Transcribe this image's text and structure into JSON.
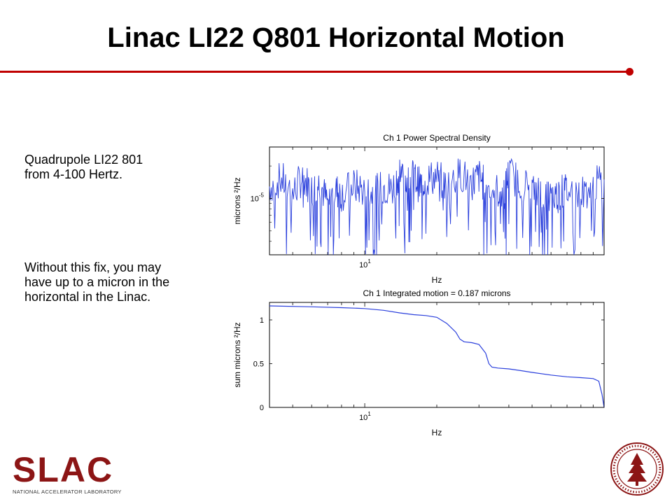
{
  "slide": {
    "title": "Linac LI22 Q801 Horizontal Motion",
    "text_block_1": [
      "Quadrupole LI22 801",
      "from 4-100 Hertz."
    ],
    "text_block_2": [
      "Without this fix, you may",
      "have up to a micron in the",
      "horizontal in the Linac."
    ],
    "accent_color": "#c00000"
  },
  "logo": {
    "word": "SLAC",
    "subtitle": "NATIONAL ACCELERATOR LABORATORY",
    "color": "#8c1515"
  },
  "seal": {
    "icon": "stanford-seal-icon",
    "color": "#8c1515"
  },
  "chart_data": [
    {
      "type": "line",
      "title": "Ch 1  Power Spectral Density",
      "xlabel": "Hz",
      "ylabel": "microns ²/Hz",
      "x_scale": "log",
      "y_scale": "log",
      "xlim": [
        4,
        100
      ],
      "ylim": [
        3e-06,
        3e-05
      ],
      "x_ticks": [
        {
          "value": 10,
          "label": "10",
          "exp": "1"
        }
      ],
      "y_ticks": [
        {
          "value": 1e-05,
          "label": "10",
          "exp": "-5"
        }
      ],
      "grid": false,
      "line_color": "#2a3fdc",
      "series": [
        {
          "x": [
            4,
            4.5,
            5,
            5.5,
            6,
            6.5,
            7,
            7.5,
            8,
            9,
            10,
            11,
            12,
            13,
            14,
            15,
            16,
            17,
            18,
            20,
            22,
            25,
            28,
            30,
            32,
            35,
            38,
            40,
            45,
            50,
            55,
            60,
            65,
            70,
            80,
            90,
            100
          ],
          "y": [
            1.3e-05,
            1.5e-05,
            1.1e-05,
            1.6e-05,
            1.2e-05,
            1.4e-05,
            9e-06,
            1.2e-05,
            1.1e-05,
            1.3e-05,
            1.2e-05,
            1.1e-05,
            1.3e-05,
            1.2e-05,
            1.8e-05,
            1.4e-05,
            1.6e-05,
            1.3e-05,
            1.5e-05,
            1.6e-05,
            1.3e-05,
            1.7e-05,
            1.4e-05,
            1.6e-05,
            1.3e-05,
            1.2e-05,
            1.1e-05,
            1.7e-05,
            1.4e-05,
            1.2e-05,
            1.1e-05,
            1e-05,
            1.1e-05,
            1.2e-05,
            1.1e-05,
            1.3e-05,
            1.5e-05
          ]
        }
      ]
    },
    {
      "type": "line",
      "title": "Ch 1   Integrated motion =    0.187 microns",
      "xlabel": "Hz",
      "ylabel": "sum microns ²/Hz",
      "x_scale": "log",
      "xlim": [
        4,
        100
      ],
      "ylim": [
        0,
        1.2
      ],
      "x_ticks": [
        {
          "value": 10,
          "label": "10",
          "exp": "1"
        }
      ],
      "y_ticks": [
        {
          "value": 0,
          "label": "0"
        },
        {
          "value": 0.5,
          "label": "0.5"
        },
        {
          "value": 1,
          "label": "1"
        }
      ],
      "grid": false,
      "line_color": "#2a3fdc",
      "series": [
        {
          "x": [
            4,
            6,
            8,
            10,
            12,
            14,
            16,
            18,
            20,
            22,
            24,
            25,
            26,
            28,
            30,
            32,
            33,
            34,
            36,
            40,
            45,
            50,
            60,
            70,
            80,
            90,
            95,
            98,
            100
          ],
          "y": [
            1.16,
            1.15,
            1.14,
            1.13,
            1.11,
            1.08,
            1.06,
            1.05,
            1.03,
            0.96,
            0.86,
            0.78,
            0.75,
            0.74,
            0.72,
            0.62,
            0.5,
            0.46,
            0.45,
            0.44,
            0.42,
            0.4,
            0.37,
            0.35,
            0.34,
            0.33,
            0.3,
            0.15,
            0.0
          ]
        }
      ]
    }
  ]
}
